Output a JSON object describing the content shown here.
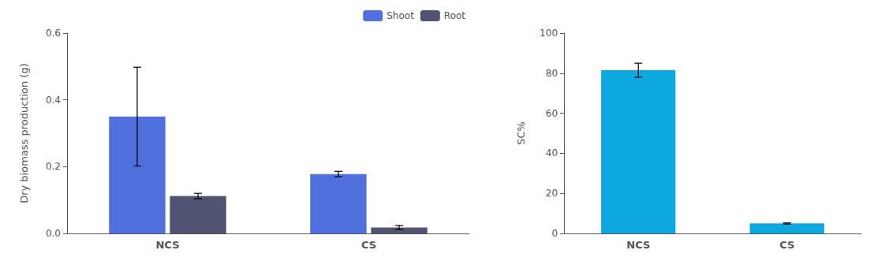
{
  "chart_data": [
    {
      "type": "bar",
      "categories": [
        "NCS",
        "CS"
      ],
      "series": [
        {
          "name": "Shoot",
          "values": [
            0.35,
            0.178
          ],
          "errors": [
            0.148,
            0.008
          ]
        },
        {
          "name": "Root",
          "values": [
            0.112,
            0.018
          ],
          "errors": [
            0.008,
            0.006
          ]
        }
      ],
      "ylabel": "Dry biomass production (g)",
      "ylim": [
        0,
        0.6
      ],
      "yticks": [
        {
          "value": 0,
          "label": "0.0"
        },
        0.2,
        0.4,
        0.6
      ],
      "legend": "upper right",
      "grid": false
    },
    {
      "type": "bar",
      "categories": [
        "NCS",
        "CS"
      ],
      "values": [
        81.5,
        5.0
      ],
      "errors": [
        3.5,
        0.3
      ],
      "ylabel": "SC%",
      "ylim": [
        0,
        100
      ],
      "yticks": [
        0,
        20,
        40,
        60,
        80,
        100
      ],
      "grid": false
    }
  ]
}
